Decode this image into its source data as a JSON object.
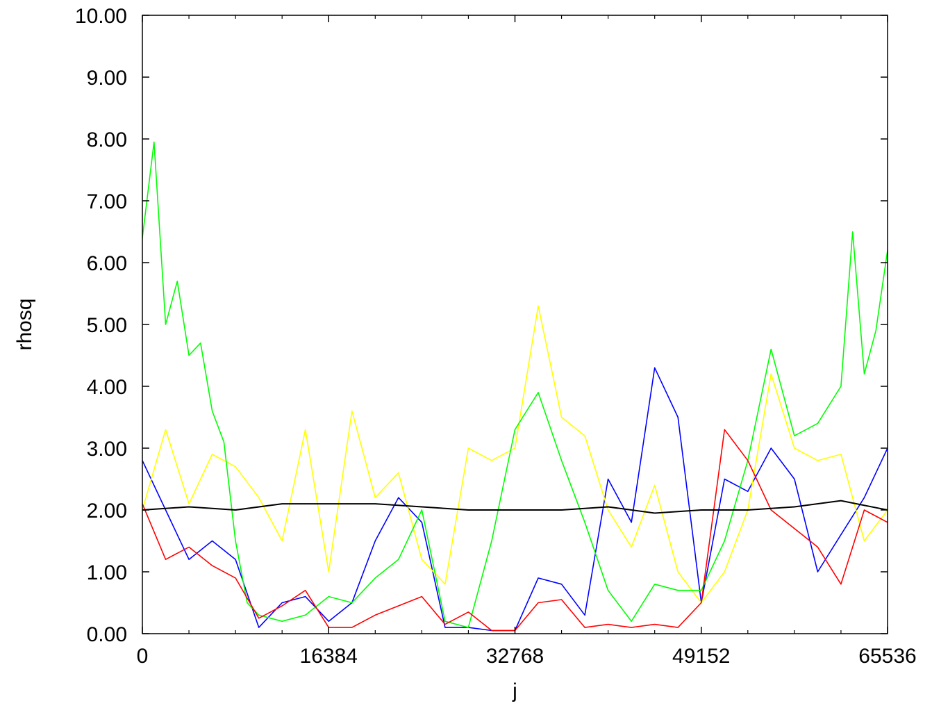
{
  "chart_data": {
    "type": "line",
    "title": "",
    "xlabel": "j",
    "ylabel": "rhosq",
    "xlim": [
      0,
      65536
    ],
    "ylim": [
      0,
      10
    ],
    "grid": false,
    "legend": "none",
    "x_ticks": [
      0,
      16384,
      32768,
      49152,
      65536
    ],
    "x_tick_labels": [
      "0",
      "16384",
      "32768",
      "49152",
      "65536"
    ],
    "y_ticks": [
      0,
      1,
      2,
      3,
      4,
      5,
      6,
      7,
      8,
      9,
      10
    ],
    "y_tick_labels": [
      "0.00",
      "1.00",
      "2.00",
      "3.00",
      "4.00",
      "5.00",
      "6.00",
      "7.00",
      "8.00",
      "9.00",
      "10.00"
    ],
    "series": [
      {
        "color": "#000000",
        "x": [
          0,
          4096,
          8192,
          12288,
          16384,
          20480,
          24576,
          28672,
          32768,
          36864,
          40960,
          45056,
          49152,
          53248,
          57344,
          61440,
          65536
        ],
        "y": [
          2.0,
          2.05,
          2.0,
          2.1,
          2.1,
          2.1,
          2.05,
          2.0,
          2.0,
          2.0,
          2.05,
          1.95,
          2.0,
          2.0,
          2.05,
          2.15,
          2.0
        ]
      },
      {
        "color": "#ff0000",
        "x": [
          0,
          2048,
          4096,
          6144,
          8192,
          10240,
          12288,
          14336,
          16384,
          18432,
          20480,
          22528,
          24576,
          26624,
          28672,
          30720,
          32768,
          34816,
          36864,
          38912,
          40960,
          43008,
          45056,
          47104,
          49152,
          51200,
          53248,
          55296,
          57344,
          59392,
          61440,
          63488,
          65536
        ],
        "y": [
          2.1,
          1.2,
          1.4,
          1.1,
          0.9,
          0.25,
          0.45,
          0.7,
          0.1,
          0.1,
          0.3,
          0.45,
          0.6,
          0.15,
          0.35,
          0.05,
          0.05,
          0.5,
          0.55,
          0.1,
          0.15,
          0.1,
          0.15,
          0.1,
          0.5,
          3.3,
          2.8,
          2.0,
          1.7,
          1.4,
          0.8,
          2.0,
          1.8
        ]
      },
      {
        "color": "#00ff00",
        "x": [
          0,
          1024,
          2048,
          3072,
          4096,
          5120,
          6144,
          7168,
          8192,
          9216,
          10240,
          12288,
          14336,
          16384,
          18432,
          20480,
          22528,
          24576,
          26624,
          28672,
          30720,
          32768,
          34816,
          36864,
          38912,
          40960,
          43008,
          45056,
          47104,
          49152,
          51200,
          53248,
          55296,
          57344,
          59392,
          61440,
          62464,
          63488,
          64512,
          65536
        ],
        "y": [
          6.4,
          7.95,
          5.0,
          5.7,
          4.5,
          4.7,
          3.6,
          3.1,
          1.5,
          0.5,
          0.3,
          0.2,
          0.3,
          0.6,
          0.5,
          0.9,
          1.2,
          2.0,
          0.2,
          0.1,
          1.5,
          3.3,
          3.9,
          2.8,
          1.8,
          0.7,
          0.2,
          0.8,
          0.7,
          0.7,
          1.5,
          2.8,
          4.6,
          3.2,
          3.4,
          4.0,
          6.5,
          4.2,
          4.9,
          6.2
        ]
      },
      {
        "color": "#ffff00",
        "x": [
          0,
          2048,
          4096,
          6144,
          8192,
          10240,
          12288,
          14336,
          16384,
          18432,
          20480,
          22528,
          24576,
          26624,
          28672,
          30720,
          32768,
          34816,
          36864,
          38912,
          40960,
          43008,
          45056,
          47104,
          49152,
          51200,
          53248,
          55296,
          57344,
          59392,
          61440,
          63488,
          65536
        ],
        "y": [
          2.0,
          3.3,
          2.1,
          2.9,
          2.7,
          2.2,
          1.5,
          3.3,
          1.0,
          3.6,
          2.2,
          2.6,
          1.2,
          0.8,
          3.0,
          2.8,
          3.0,
          5.3,
          3.5,
          3.2,
          2.0,
          1.4,
          2.4,
          1.0,
          0.5,
          1.0,
          2.0,
          4.2,
          3.0,
          2.8,
          2.9,
          1.5,
          2.0
        ]
      },
      {
        "color": "#0000ff",
        "x": [
          0,
          2048,
          4096,
          6144,
          8192,
          10240,
          12288,
          14336,
          16384,
          18432,
          20480,
          22528,
          24576,
          26624,
          28672,
          30720,
          32768,
          34816,
          36864,
          38912,
          40960,
          43008,
          45056,
          47104,
          49152,
          51200,
          53248,
          55296,
          57344,
          59392,
          61440,
          63488,
          65536
        ],
        "y": [
          2.8,
          2.0,
          1.2,
          1.5,
          1.2,
          0.1,
          0.5,
          0.6,
          0.2,
          0.5,
          1.5,
          2.2,
          1.8,
          0.1,
          0.1,
          0.05,
          0.05,
          0.9,
          0.8,
          0.3,
          2.5,
          1.8,
          4.3,
          3.5,
          0.5,
          2.5,
          2.3,
          3.0,
          2.5,
          1.0,
          1.6,
          2.2,
          3.0
        ]
      }
    ]
  }
}
